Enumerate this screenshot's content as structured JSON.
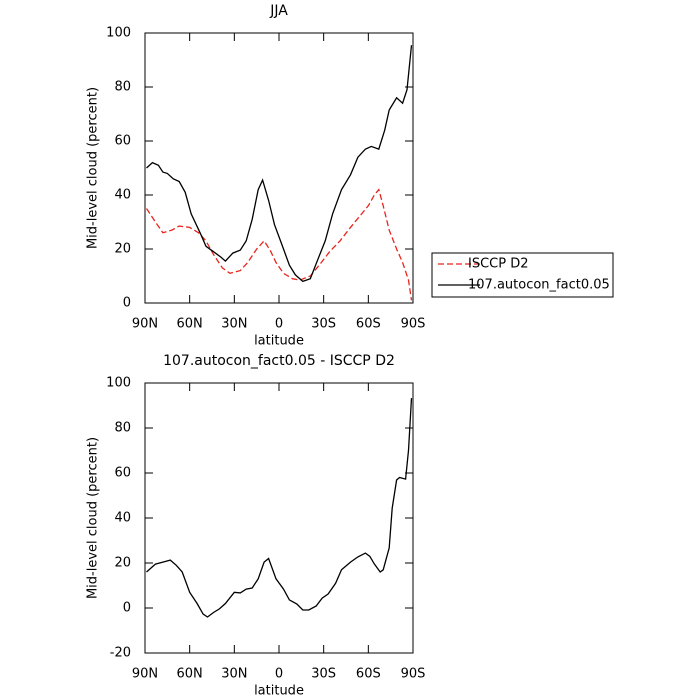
{
  "chart_data": [
    {
      "type": "line",
      "title": "JJA",
      "xlabel": "latitude",
      "ylabel": "Mid-level cloud (percent)",
      "xlim": [
        90,
        -90
      ],
      "xticks": [
        {
          "value": 90,
          "label": "90N"
        },
        {
          "value": 60,
          "label": "60N"
        },
        {
          "value": 30,
          "label": "30N"
        },
        0,
        {
          "value": -30,
          "label": "30S"
        },
        {
          "value": -60,
          "label": "60S"
        },
        {
          "value": -90,
          "label": "90S"
        }
      ],
      "ylim": [
        0,
        100
      ],
      "yticks": [
        0,
        20,
        40,
        60,
        80,
        100
      ],
      "legend": "right",
      "series": [
        {
          "name": "ISCCP D2",
          "color": "#e8251e",
          "linestyle": "dashed",
          "x": [
            89,
            83,
            78,
            72,
            67,
            60,
            54,
            49,
            44,
            38,
            33,
            26,
            21,
            15,
            10,
            6,
            2,
            -3,
            -9,
            -14,
            -21,
            -27,
            -34,
            -41,
            -48,
            -54,
            -60,
            -64,
            -67,
            -70,
            -74,
            -79,
            -83,
            -87,
            -89
          ],
          "values": [
            35,
            30,
            26,
            27,
            28.5,
            28,
            26,
            23,
            18,
            13,
            11,
            12,
            15,
            20,
            23,
            19.6,
            15,
            11,
            9,
            8.5,
            10,
            14,
            19,
            23,
            28,
            32,
            36,
            40,
            42,
            36,
            27,
            20,
            15,
            8.5,
            1
          ]
        },
        {
          "name": "107.autocon_fact0.05",
          "color": "#000000",
          "linestyle": "solid",
          "x": [
            89,
            85,
            81,
            78,
            75,
            71,
            67,
            63,
            59,
            53,
            49,
            44,
            39,
            36,
            31,
            26,
            22,
            18,
            14,
            11,
            7,
            3,
            -2,
            -7,
            -11,
            -16,
            -21,
            -26,
            -31,
            -36,
            -42,
            -48,
            -53,
            -58,
            -62,
            -67,
            -71,
            -74,
            -79,
            -83,
            -86,
            -89
          ],
          "values": [
            50,
            52,
            51,
            48.5,
            48,
            46,
            45,
            41,
            33,
            26,
            21,
            19,
            17,
            15.5,
            18.5,
            19.6,
            23,
            31,
            42,
            45.5,
            38,
            29,
            21.5,
            14,
            10.4,
            8,
            9,
            16,
            23,
            33,
            42,
            47.5,
            54,
            57,
            58,
            57,
            64,
            71.5,
            76,
            74,
            79,
            95.5
          ]
        }
      ]
    },
    {
      "type": "line",
      "title": "107.autocon_fact0.05 - ISCCP D2",
      "xlabel": "latitude",
      "ylabel": "Mid-level cloud (percent)",
      "xlim": [
        90,
        -90
      ],
      "xticks": [
        {
          "value": 90,
          "label": "90N"
        },
        {
          "value": 60,
          "label": "60N"
        },
        {
          "value": 30,
          "label": "30N"
        },
        0,
        {
          "value": -30,
          "label": "30S"
        },
        {
          "value": -60,
          "label": "60S"
        },
        {
          "value": -90,
          "label": "90S"
        }
      ],
      "ylim": [
        -20,
        100
      ],
      "yticks": [
        -20,
        0,
        20,
        40,
        60,
        80,
        100
      ],
      "series": [
        {
          "color": "#000000",
          "linestyle": "solid",
          "x": [
            89,
            83,
            78,
            73,
            69,
            65,
            60,
            55,
            51,
            48,
            44,
            40,
            36,
            30,
            26,
            22,
            18,
            14,
            10,
            7,
            2,
            -3,
            -7,
            -12,
            -16,
            -20,
            -25,
            -29,
            -33,
            -38,
            -42,
            -48,
            -53,
            -58,
            -61,
            -64,
            -68,
            -70,
            -74,
            -76,
            -79,
            -81,
            -85,
            -87,
            -89
          ],
          "values": [
            16,
            19.5,
            20.4,
            21.3,
            19,
            16,
            7,
            2,
            -2.7,
            -4,
            -2,
            -0.4,
            2,
            7,
            6.7,
            8.4,
            8.9,
            13,
            20.4,
            22,
            13,
            8.4,
            3.6,
            1.8,
            -0.9,
            -0.9,
            0.9,
            4.4,
            6.2,
            11,
            17,
            20.4,
            22.7,
            24.4,
            23,
            19.6,
            16,
            17,
            26.7,
            44.4,
            56.9,
            58,
            57.3,
            70,
            93.3
          ]
        }
      ]
    }
  ]
}
